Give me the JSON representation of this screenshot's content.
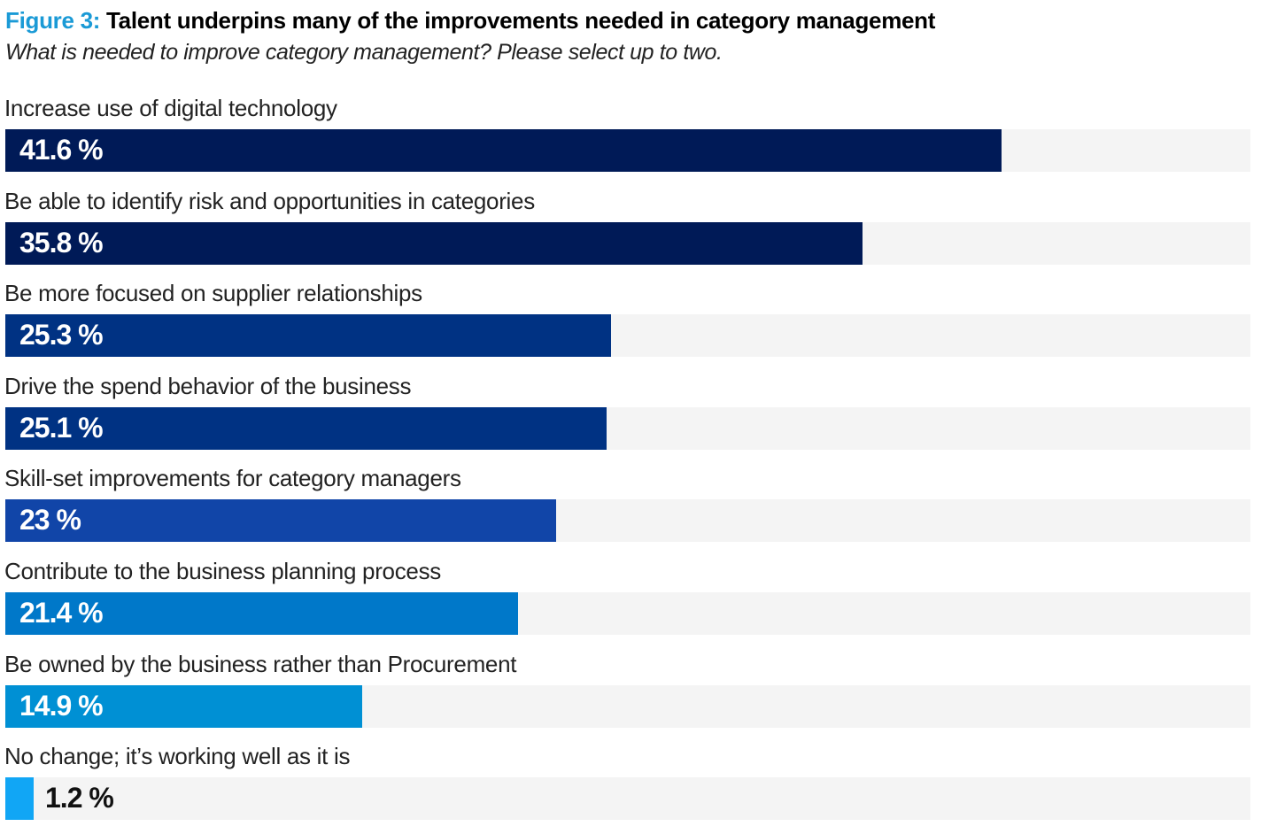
{
  "header": {
    "figure_label": "Figure 3:",
    "title": "Talent underpins many of the improvements needed in category management",
    "subtitle": "What is needed to improve category management? Please select up to two."
  },
  "chart_data": {
    "type": "bar",
    "orientation": "horizontal",
    "title": "Figure 3: Talent underpins many of the improvements needed in category management",
    "subtitle": "What is needed to improve category management? Please select up to two.",
    "xlabel": "",
    "ylabel": "",
    "unit": "%",
    "xlim": [
      0,
      52
    ],
    "grid": false,
    "legend": "none",
    "categories": [
      "Increase use of digital technology",
      "Be able to identify risk and opportunities in categories",
      "Be more focused on supplier relationships",
      "Drive the spend behavior of the business",
      "Skill-set improvements for category managers",
      "Contribute to the business planning process",
      "Be owned by the business rather than Procurement",
      "No change; it’s working well as it is"
    ],
    "values": [
      41.6,
      35.8,
      25.3,
      25.1,
      23,
      21.4,
      14.9,
      1.2
    ],
    "value_labels": [
      "41.6 %",
      "35.8 %",
      "25.3 %",
      "25.1 %",
      "23 %",
      "21.4 %",
      "14.9 %",
      "1.2 %"
    ],
    "colors": [
      "#001a57",
      "#001a57",
      "#003283",
      "#003283",
      "#1145a8",
      "#0078c9",
      "#0090d4",
      "#11a6f5"
    ],
    "track_color": "#f4f4f4"
  }
}
